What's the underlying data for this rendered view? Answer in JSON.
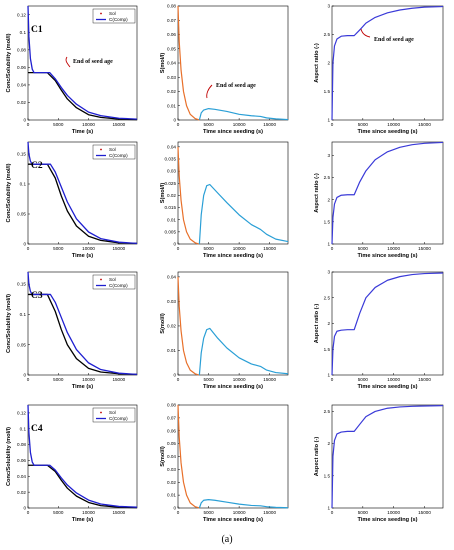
{
  "figure": {
    "caption": "(a)",
    "row_labels": [
      "C1",
      "C2",
      "C3",
      "C4"
    ],
    "legend": {
      "sol": "Sol",
      "comp": "C(Comp)"
    },
    "annotation": "End of seed age",
    "colors": {
      "sol": "#c00000",
      "comp": "#1f1fd0",
      "black": "#000000",
      "s_decay": "#e8702a",
      "s_growth": "#2a9fd6",
      "aspect": "#3a3ad8"
    }
  },
  "chart_data": [
    {
      "type": "line",
      "panel": "C1-concentration",
      "xlabel": "Time (s)",
      "ylabel": "Conc/Solubility (mol/l)",
      "xlim": [
        0,
        18000
      ],
      "ylim": [
        0,
        0.13
      ],
      "xticks": [
        0,
        5000,
        10000,
        15000
      ],
      "yticks": [
        0,
        0.02,
        0.04,
        0.06,
        0.08,
        0.1,
        0.12
      ],
      "series": [
        {
          "name": "Sol",
          "x": [
            0,
            3200,
            4500,
            5500,
            6500,
            8000,
            10000,
            12000,
            15000,
            18000
          ],
          "y": [
            0.054,
            0.054,
            0.045,
            0.034,
            0.024,
            0.014,
            0.006,
            0.003,
            0.001,
            0.0005
          ]
        },
        {
          "name": "C(Comp)",
          "x": [
            0,
            150,
            400,
            700,
            1000,
            3600,
            4500,
            5500,
            6500,
            8000,
            10000,
            12000,
            15000,
            18000
          ],
          "y": [
            0.13,
            0.095,
            0.07,
            0.058,
            0.054,
            0.054,
            0.047,
            0.037,
            0.028,
            0.018,
            0.009,
            0.005,
            0.002,
            0.001
          ]
        }
      ]
    },
    {
      "type": "line",
      "panel": "C1-supersaturation",
      "xlabel": "Time since seeding (s)",
      "ylabel": "S(mol/l)",
      "xlim": [
        0,
        18000
      ],
      "ylim": [
        0,
        0.08
      ],
      "xticks": [
        0,
        5000,
        10000,
        15000
      ],
      "yticks": [
        0,
        0.01,
        0.02,
        0.03,
        0.04,
        0.05,
        0.06,
        0.07,
        0.08
      ],
      "series": [
        {
          "x": [
            0,
            200,
            500,
            900,
            1400,
            2000,
            2800,
            3500
          ],
          "y": [
            0.08,
            0.055,
            0.035,
            0.02,
            0.01,
            0.004,
            0.001,
            0
          ]
        },
        {
          "x": [
            3500,
            3800,
            4200,
            5000,
            6000,
            8000,
            10000,
            12000,
            13500,
            14500,
            16000,
            18000
          ],
          "y": [
            0,
            0.005,
            0.007,
            0.008,
            0.0075,
            0.006,
            0.004,
            0.003,
            0.0025,
            0.0015,
            0.0008,
            0.0003
          ]
        }
      ]
    },
    {
      "type": "line",
      "panel": "C1-aspect",
      "xlabel": "Time since seeding (s)",
      "ylabel": "Aspect ratio (-)",
      "xlim": [
        0,
        18000
      ],
      "ylim": [
        1,
        3
      ],
      "xticks": [
        0,
        5000,
        10000,
        15000
      ],
      "yticks": [
        1,
        1.5,
        2,
        2.5,
        3
      ],
      "series": [
        {
          "x": [
            0,
            150,
            400,
            800,
            1500,
            2500,
            3600,
            4500,
            5500,
            7000,
            9000,
            11000,
            13000,
            15000,
            18000
          ],
          "y": [
            1,
            2.0,
            2.3,
            2.42,
            2.47,
            2.48,
            2.48,
            2.58,
            2.7,
            2.8,
            2.88,
            2.93,
            2.96,
            2.98,
            2.99
          ]
        }
      ]
    },
    {
      "type": "line",
      "panel": "C2-concentration",
      "xlabel": "Time (s)",
      "ylabel": "Conc/Solubility (mol/l)",
      "xlim": [
        0,
        18000
      ],
      "ylim": [
        0,
        0.17
      ],
      "xticks": [
        0,
        5000,
        10000,
        15000
      ],
      "yticks": [
        0,
        0.05,
        0.1,
        0.15
      ],
      "series": [
        {
          "name": "Sol",
          "x": [
            0,
            3200,
            4500,
            5500,
            6500,
            8000,
            10000,
            12000,
            15000,
            18000
          ],
          "y": [
            0.133,
            0.133,
            0.11,
            0.08,
            0.055,
            0.03,
            0.013,
            0.006,
            0.002,
            0.001
          ]
        },
        {
          "name": "C(Comp)",
          "x": [
            0,
            150,
            400,
            700,
            3700,
            4500,
            5500,
            6500,
            8000,
            10000,
            12000,
            15000,
            18000
          ],
          "y": [
            0.17,
            0.15,
            0.138,
            0.133,
            0.133,
            0.12,
            0.095,
            0.07,
            0.042,
            0.02,
            0.009,
            0.003,
            0.001
          ]
        }
      ]
    },
    {
      "type": "line",
      "panel": "C2-supersaturation",
      "xlabel": "Time since seeding (s)",
      "ylabel": "S(mol/l)",
      "xlim": [
        0,
        18000
      ],
      "ylim": [
        0,
        0.042
      ],
      "xticks": [
        0,
        5000,
        10000,
        15000
      ],
      "yticks": [
        0,
        0.005,
        0.01,
        0.015,
        0.02,
        0.025,
        0.03,
        0.035,
        0.04
      ],
      "series": [
        {
          "x": [
            0,
            200,
            500,
            900,
            1400,
            2000,
            2800,
            3400
          ],
          "y": [
            0.04,
            0.028,
            0.018,
            0.01,
            0.005,
            0.002,
            0.0005,
            0
          ]
        },
        {
          "x": [
            3500,
            3800,
            4200,
            4700,
            5200,
            6500,
            8000,
            10000,
            12000,
            13500,
            14500,
            16000,
            18000
          ],
          "y": [
            0,
            0.012,
            0.02,
            0.024,
            0.0245,
            0.021,
            0.017,
            0.012,
            0.008,
            0.006,
            0.004,
            0.002,
            0.001
          ]
        }
      ]
    },
    {
      "type": "line",
      "panel": "C2-aspect",
      "xlabel": "Time since seeding (s)",
      "ylabel": "Aspect ratio (-)",
      "xlim": [
        0,
        18000
      ],
      "ylim": [
        1,
        3.3
      ],
      "xticks": [
        0,
        5000,
        10000,
        15000
      ],
      "yticks": [
        1,
        1.5,
        2,
        2.5,
        3
      ],
      "series": [
        {
          "x": [
            0,
            150,
            400,
            800,
            1500,
            2500,
            3600,
            4500,
            5500,
            7000,
            9000,
            11000,
            13000,
            15000,
            18000
          ],
          "y": [
            1,
            1.6,
            1.9,
            2.05,
            2.1,
            2.11,
            2.11,
            2.4,
            2.65,
            2.9,
            3.08,
            3.18,
            3.24,
            3.27,
            3.29
          ]
        }
      ]
    },
    {
      "type": "line",
      "panel": "C3-concentration",
      "xlabel": "Time (s)",
      "ylabel": "Conc/Solubility (mol/l)",
      "xlim": [
        0,
        18000
      ],
      "ylim": [
        0,
        0.17
      ],
      "xticks": [
        0,
        5000,
        10000,
        15000
      ],
      "yticks": [
        0,
        0.05,
        0.1,
        0.15
      ],
      "series": [
        {
          "name": "Sol",
          "x": [
            0,
            3200,
            4500,
            5500,
            6500,
            8000,
            10000,
            12000,
            15000,
            18000
          ],
          "y": [
            0.133,
            0.133,
            0.105,
            0.075,
            0.05,
            0.027,
            0.011,
            0.005,
            0.002,
            0.001
          ]
        },
        {
          "name": "C(Comp)",
          "x": [
            0,
            150,
            400,
            700,
            3700,
            4500,
            5500,
            6500,
            8000,
            10000,
            12000,
            15000,
            18000
          ],
          "y": [
            0.17,
            0.15,
            0.138,
            0.133,
            0.133,
            0.12,
            0.095,
            0.07,
            0.042,
            0.02,
            0.009,
            0.003,
            0.001
          ]
        }
      ]
    },
    {
      "type": "line",
      "panel": "C3-supersaturation",
      "xlabel": "Time since seeding (s)",
      "ylabel": "S(mol/l)",
      "xlim": [
        0,
        18000
      ],
      "ylim": [
        0,
        0.042
      ],
      "xticks": [
        0,
        5000,
        10000,
        15000
      ],
      "yticks": [
        0,
        0.01,
        0.02,
        0.03,
        0.04
      ],
      "series": [
        {
          "x": [
            0,
            200,
            500,
            900,
            1400,
            2000,
            2800,
            3400
          ],
          "y": [
            0.04,
            0.028,
            0.018,
            0.01,
            0.005,
            0.002,
            0.0005,
            0
          ]
        },
        {
          "x": [
            3500,
            3800,
            4200,
            4700,
            5200,
            6500,
            8000,
            10000,
            12000,
            13500,
            14500,
            16000,
            18000
          ],
          "y": [
            0,
            0.009,
            0.015,
            0.0185,
            0.019,
            0.015,
            0.011,
            0.007,
            0.0045,
            0.0035,
            0.002,
            0.001,
            0.0005
          ]
        }
      ]
    },
    {
      "type": "line",
      "panel": "C3-aspect",
      "xlabel": "Time since seeding (s)",
      "ylabel": "Aspect ratio (-)",
      "xlim": [
        0,
        18000
      ],
      "ylim": [
        1,
        3
      ],
      "xticks": [
        0,
        5000,
        10000,
        15000
      ],
      "yticks": [
        1,
        1.5,
        2,
        2.5,
        3
      ],
      "series": [
        {
          "x": [
            0,
            150,
            400,
            800,
            1500,
            2500,
            3600,
            4500,
            5500,
            7000,
            9000,
            11000,
            13000,
            15000,
            18000
          ],
          "y": [
            1,
            1.5,
            1.75,
            1.85,
            1.87,
            1.88,
            1.88,
            2.2,
            2.5,
            2.7,
            2.84,
            2.91,
            2.95,
            2.97,
            2.98
          ]
        }
      ]
    },
    {
      "type": "line",
      "panel": "C4-concentration",
      "xlabel": "Time (s)",
      "ylabel": "Conc/Solubility (mol/l)",
      "xlim": [
        0,
        18000
      ],
      "ylim": [
        0,
        0.13
      ],
      "xticks": [
        0,
        5000,
        10000,
        15000
      ],
      "yticks": [
        0,
        0.02,
        0.04,
        0.06,
        0.08,
        0.1,
        0.12
      ],
      "series": [
        {
          "name": "Sol",
          "x": [
            0,
            3200,
            4500,
            5500,
            6500,
            8000,
            10000,
            12000,
            15000,
            18000
          ],
          "y": [
            0.054,
            0.054,
            0.046,
            0.035,
            0.025,
            0.015,
            0.007,
            0.003,
            0.001,
            0.0005
          ]
        },
        {
          "name": "C(Comp)",
          "x": [
            0,
            150,
            400,
            700,
            1000,
            3600,
            4500,
            5500,
            6500,
            8000,
            10000,
            12000,
            15000,
            18000
          ],
          "y": [
            0.13,
            0.095,
            0.07,
            0.058,
            0.054,
            0.054,
            0.048,
            0.038,
            0.029,
            0.019,
            0.01,
            0.005,
            0.002,
            0.001
          ]
        }
      ]
    },
    {
      "type": "line",
      "panel": "C4-supersaturation",
      "xlabel": "Time since seeding (s)",
      "ylabel": "S(mol/l)",
      "xlim": [
        0,
        18000
      ],
      "ylim": [
        0,
        0.08
      ],
      "xticks": [
        0,
        5000,
        10000,
        15000
      ],
      "yticks": [
        0,
        0.01,
        0.02,
        0.03,
        0.04,
        0.05,
        0.06,
        0.07,
        0.08
      ],
      "series": [
        {
          "x": [
            0,
            200,
            500,
            900,
            1400,
            2000,
            2800,
            3500
          ],
          "y": [
            0.08,
            0.055,
            0.035,
            0.02,
            0.01,
            0.004,
            0.001,
            0
          ]
        },
        {
          "x": [
            3500,
            3800,
            4200,
            5000,
            6000,
            8000,
            10000,
            12000,
            13500,
            14500,
            16000,
            18000
          ],
          "y": [
            0,
            0.004,
            0.006,
            0.0065,
            0.006,
            0.0045,
            0.003,
            0.002,
            0.0017,
            0.001,
            0.0005,
            0.0002
          ]
        }
      ]
    },
    {
      "type": "line",
      "panel": "C4-aspect",
      "xlabel": "Time since seeding (s)",
      "ylabel": "Aspect ratio (-)",
      "xlim": [
        0,
        18000
      ],
      "ylim": [
        1,
        2.6
      ],
      "xticks": [
        0,
        5000,
        10000,
        15000
      ],
      "yticks": [
        1,
        1.5,
        2,
        2.5
      ],
      "series": [
        {
          "x": [
            0,
            150,
            400,
            800,
            1500,
            2500,
            3600,
            4500,
            5500,
            7000,
            9000,
            11000,
            13000,
            15000,
            18000
          ],
          "y": [
            1,
            1.8,
            2.05,
            2.15,
            2.18,
            2.19,
            2.19,
            2.3,
            2.42,
            2.5,
            2.55,
            2.57,
            2.58,
            2.585,
            2.59
          ]
        }
      ]
    }
  ]
}
